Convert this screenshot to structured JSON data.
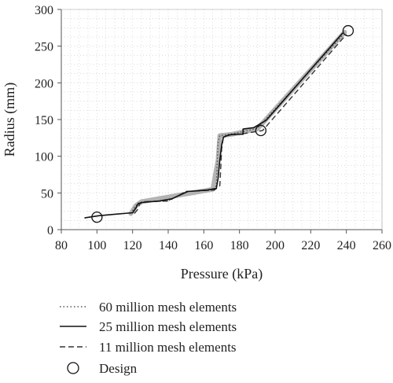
{
  "chart_data": {
    "type": "line",
    "title": "",
    "xlabel": "Pressure (kPa)",
    "ylabel": "Radius (mm)",
    "xlim": [
      80,
      260
    ],
    "ylim": [
      0,
      300
    ],
    "xticks": [
      80,
      100,
      120,
      140,
      160,
      180,
      200,
      220,
      240,
      260
    ],
    "yticks": [
      0,
      50,
      100,
      150,
      200,
      250,
      300
    ],
    "grid": "dotted",
    "legend_position": "bottom",
    "series": [
      {
        "name": "60 million mesh elements",
        "style": "dotted",
        "color": "#555555",
        "points": [
          [
            119,
            22
          ],
          [
            121,
            30
          ],
          [
            123,
            36
          ],
          [
            126,
            38
          ],
          [
            140,
            39
          ],
          [
            150,
            52
          ],
          [
            165,
            54
          ],
          [
            167,
            60
          ],
          [
            168,
            120
          ],
          [
            169,
            128
          ],
          [
            172,
            129
          ],
          [
            181,
            133
          ],
          [
            190,
            138
          ],
          [
            238,
            265
          ]
        ]
      },
      {
        "name": "25 million mesh elements",
        "style": "solid",
        "color": "#111111",
        "points": [
          [
            93,
            16
          ],
          [
            101,
            19
          ],
          [
            110,
            21
          ],
          [
            120,
            23
          ],
          [
            122,
            30
          ],
          [
            123,
            35
          ],
          [
            125,
            37
          ],
          [
            135,
            39
          ],
          [
            142,
            42
          ],
          [
            151,
            52
          ],
          [
            162,
            54
          ],
          [
            167,
            56
          ],
          [
            168,
            70
          ],
          [
            169,
            95
          ],
          [
            170,
            115
          ],
          [
            171,
            126
          ],
          [
            174,
            129
          ],
          [
            178,
            130
          ],
          [
            182,
            130
          ],
          [
            182,
            137
          ],
          [
            188,
            139
          ],
          [
            195,
            149
          ],
          [
            238,
            268
          ]
        ]
      },
      {
        "name": "11 million mesh elements",
        "style": "dashed",
        "color": "#333333",
        "points": [
          [
            121,
            22
          ],
          [
            123,
            28
          ],
          [
            124,
            35
          ],
          [
            126,
            38
          ],
          [
            140,
            39
          ],
          [
            150,
            52
          ],
          [
            166,
            54
          ],
          [
            169,
            60
          ],
          [
            170,
            110
          ],
          [
            171,
            127
          ],
          [
            175,
            129
          ],
          [
            183,
            131
          ],
          [
            193,
            135
          ],
          [
            240,
            266
          ]
        ]
      },
      {
        "name": "Design",
        "style": "marker-circle",
        "color": "#111111",
        "points": [
          [
            100,
            17
          ],
          [
            192,
            135
          ],
          [
            241,
            271
          ]
        ]
      }
    ],
    "band": {
      "color": "#b3b3b3",
      "points": [
        [
          119,
          22
        ],
        [
          122,
          33
        ],
        [
          125,
          38
        ],
        [
          165,
          55
        ],
        [
          168,
          95
        ],
        [
          169,
          128
        ],
        [
          176,
          130
        ],
        [
          190,
          137
        ],
        [
          239,
          269
        ]
      ]
    }
  }
}
